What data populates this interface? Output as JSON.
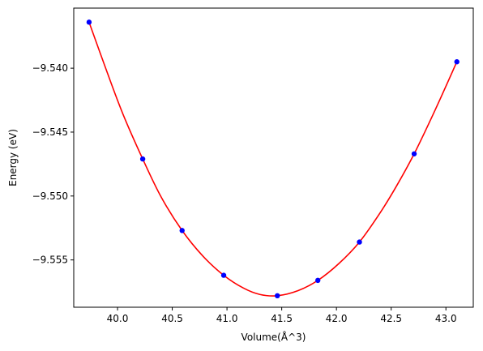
{
  "chart_data": {
    "type": "scatter",
    "title": "",
    "xlabel": "Volume(Å^3)",
    "ylabel": "Energy (eV)",
    "xlim": [
      39.6,
      43.25
    ],
    "ylim": [
      -9.5587,
      -9.5353
    ],
    "xticks": [
      40.0,
      40.5,
      41.0,
      41.5,
      42.0,
      42.5,
      43.0
    ],
    "xtick_labels": [
      "40.0",
      "40.5",
      "41.0",
      "41.5",
      "42.0",
      "42.5",
      "43.0"
    ],
    "yticks": [
      -9.54,
      -9.545,
      -9.55,
      -9.555
    ],
    "ytick_labels": [
      "−9.540",
      "−9.545",
      "−9.550",
      "−9.555"
    ],
    "grid": false,
    "series": [
      {
        "kind": "points",
        "color": "#0000ff",
        "x": [
          39.74,
          40.23,
          40.59,
          40.97,
          41.46,
          41.83,
          42.21,
          42.71,
          43.1
        ],
        "y": [
          -9.5364,
          -9.5471,
          -9.5527,
          -9.5562,
          -9.5578,
          -9.5566,
          -9.5536,
          -9.5467,
          -9.5395
        ]
      },
      {
        "kind": "fit-curve",
        "color": "#ff0000",
        "x": [
          39.74,
          39.9,
          40.05,
          40.23,
          40.4,
          40.59,
          40.78,
          40.97,
          41.15,
          41.3,
          41.46,
          41.65,
          41.83,
          42.02,
          42.21,
          42.4,
          42.55,
          42.71,
          42.9,
          43.1
        ],
        "y": [
          -9.5364,
          -9.5402,
          -9.5436,
          -9.5471,
          -9.5501,
          -9.5527,
          -9.5547,
          -9.5562,
          -9.5572,
          -9.5577,
          -9.5578,
          -9.5574,
          -9.5566,
          -9.5553,
          -9.5536,
          -9.5513,
          -9.5492,
          -9.5467,
          -9.5433,
          -9.5395
        ]
      }
    ]
  }
}
